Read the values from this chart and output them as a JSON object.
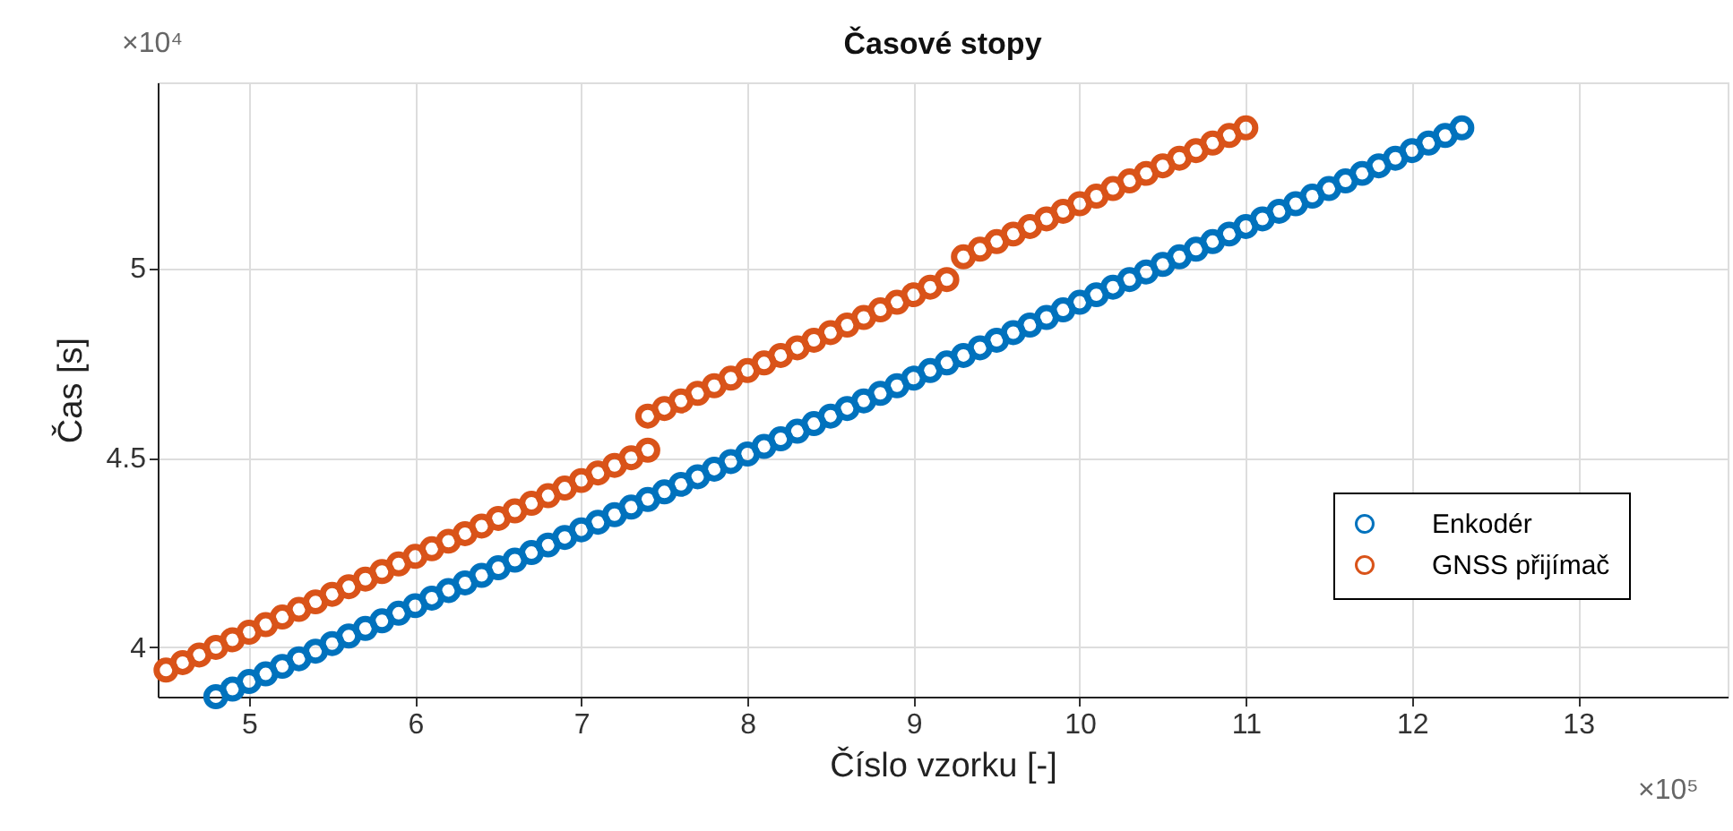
{
  "chart_data": {
    "type": "scatter",
    "title": "Časové stopy",
    "xlabel": "Číslo vzorku [-]",
    "ylabel": "Čas [s]",
    "annotations": [
      "×10⁴",
      "×10⁵"
    ],
    "xlim": [
      4.45,
      13.9
    ],
    "xticks": [
      5,
      6,
      7,
      8,
      9,
      10,
      11,
      12,
      13
    ],
    "ylim": [
      3.87,
      5.49
    ],
    "yticks": [
      4,
      4.5,
      5
    ],
    "grid": true,
    "legend": "bottom right",
    "marker": "circle",
    "series": [
      {
        "name": "Enkodér",
        "color": "#0072bd",
        "x": [
          4.8,
          4.9,
          5.0,
          5.1,
          5.2,
          5.3,
          5.4,
          5.5,
          5.6,
          5.7,
          5.8,
          5.9,
          6.0,
          6.1,
          6.2,
          6.3,
          6.4,
          6.5,
          6.6,
          6.7,
          6.8,
          6.9,
          7.0,
          7.1,
          7.2,
          7.3,
          7.4,
          7.5,
          7.6,
          7.7,
          7.8,
          7.9,
          8.0,
          8.1,
          8.2,
          8.3,
          8.4,
          8.5,
          8.6,
          8.7,
          8.8,
          8.9,
          9.0,
          9.1,
          9.2,
          9.3,
          9.4,
          9.5,
          9.6,
          9.7,
          9.8,
          9.9,
          10.0,
          10.1,
          10.2,
          10.3,
          10.4,
          10.5,
          10.6,
          10.7,
          10.8,
          10.9,
          11.0,
          11.1,
          11.2,
          11.3,
          11.4,
          11.5,
          11.6,
          11.7,
          11.8,
          11.9,
          12.0,
          12.1,
          12.2,
          12.3
        ],
        "values": [
          3.87,
          3.89,
          3.91,
          3.93,
          3.95,
          3.97,
          3.99,
          4.01,
          4.03,
          4.05,
          4.07,
          4.09,
          4.11,
          4.13,
          4.15,
          4.17,
          4.19,
          4.21,
          4.23,
          4.25,
          4.27,
          4.29,
          4.31,
          4.33,
          4.35,
          4.37,
          4.39,
          4.41,
          4.43,
          4.45,
          4.47,
          4.49,
          4.51,
          4.53,
          4.55,
          4.57,
          4.59,
          4.61,
          4.63,
          4.65,
          4.67,
          4.69,
          4.71,
          4.73,
          4.75,
          4.77,
          4.79,
          4.81,
          4.83,
          4.85,
          4.87,
          4.89,
          4.91,
          4.93,
          4.95,
          4.97,
          4.99,
          5.01,
          5.03,
          5.05,
          5.07,
          5.09,
          5.11,
          5.13,
          5.15,
          5.17,
          5.19,
          5.21,
          5.23,
          5.25,
          5.27,
          5.29,
          5.31,
          5.33,
          5.35,
          5.37
        ]
      },
      {
        "name": "GNSS přijímač",
        "color": "#d95319",
        "x": [
          4.5,
          4.6,
          4.7,
          4.8,
          4.9,
          5.0,
          5.1,
          5.2,
          5.3,
          5.4,
          5.5,
          5.6,
          5.7,
          5.8,
          5.9,
          6.0,
          6.1,
          6.2,
          6.3,
          6.4,
          6.5,
          6.6,
          6.7,
          6.8,
          6.9,
          7.0,
          7.1,
          7.2,
          7.3,
          7.4,
          7.4,
          7.5,
          7.6,
          7.7,
          7.8,
          7.9,
          8.0,
          8.1,
          8.2,
          8.3,
          8.4,
          8.5,
          8.6,
          8.7,
          8.8,
          8.9,
          9.0,
          9.1,
          9.2,
          9.3,
          9.4,
          9.5,
          9.6,
          9.7,
          9.8,
          9.9,
          10.0,
          10.1,
          10.2,
          10.3,
          10.4,
          10.5,
          10.6,
          10.7,
          10.8,
          10.9,
          11.0
        ],
        "values": [
          3.94,
          3.96,
          3.98,
          4.0,
          4.02,
          4.04,
          4.06,
          4.08,
          4.1,
          4.12,
          4.14,
          4.16,
          4.18,
          4.2,
          4.22,
          4.24,
          4.26,
          4.28,
          4.3,
          4.32,
          4.34,
          4.36,
          4.38,
          4.4,
          4.42,
          4.44,
          4.46,
          4.48,
          4.5,
          4.52,
          4.61,
          4.63,
          4.65,
          4.67,
          4.69,
          4.71,
          4.73,
          4.75,
          4.77,
          4.79,
          4.81,
          4.83,
          4.85,
          4.87,
          4.89,
          4.91,
          4.93,
          4.95,
          4.97,
          5.03,
          5.05,
          5.07,
          5.09,
          5.11,
          5.13,
          5.15,
          5.17,
          5.19,
          5.21,
          5.23,
          5.25,
          5.27,
          5.29,
          5.31,
          5.33,
          5.35,
          5.37
        ]
      }
    ]
  }
}
